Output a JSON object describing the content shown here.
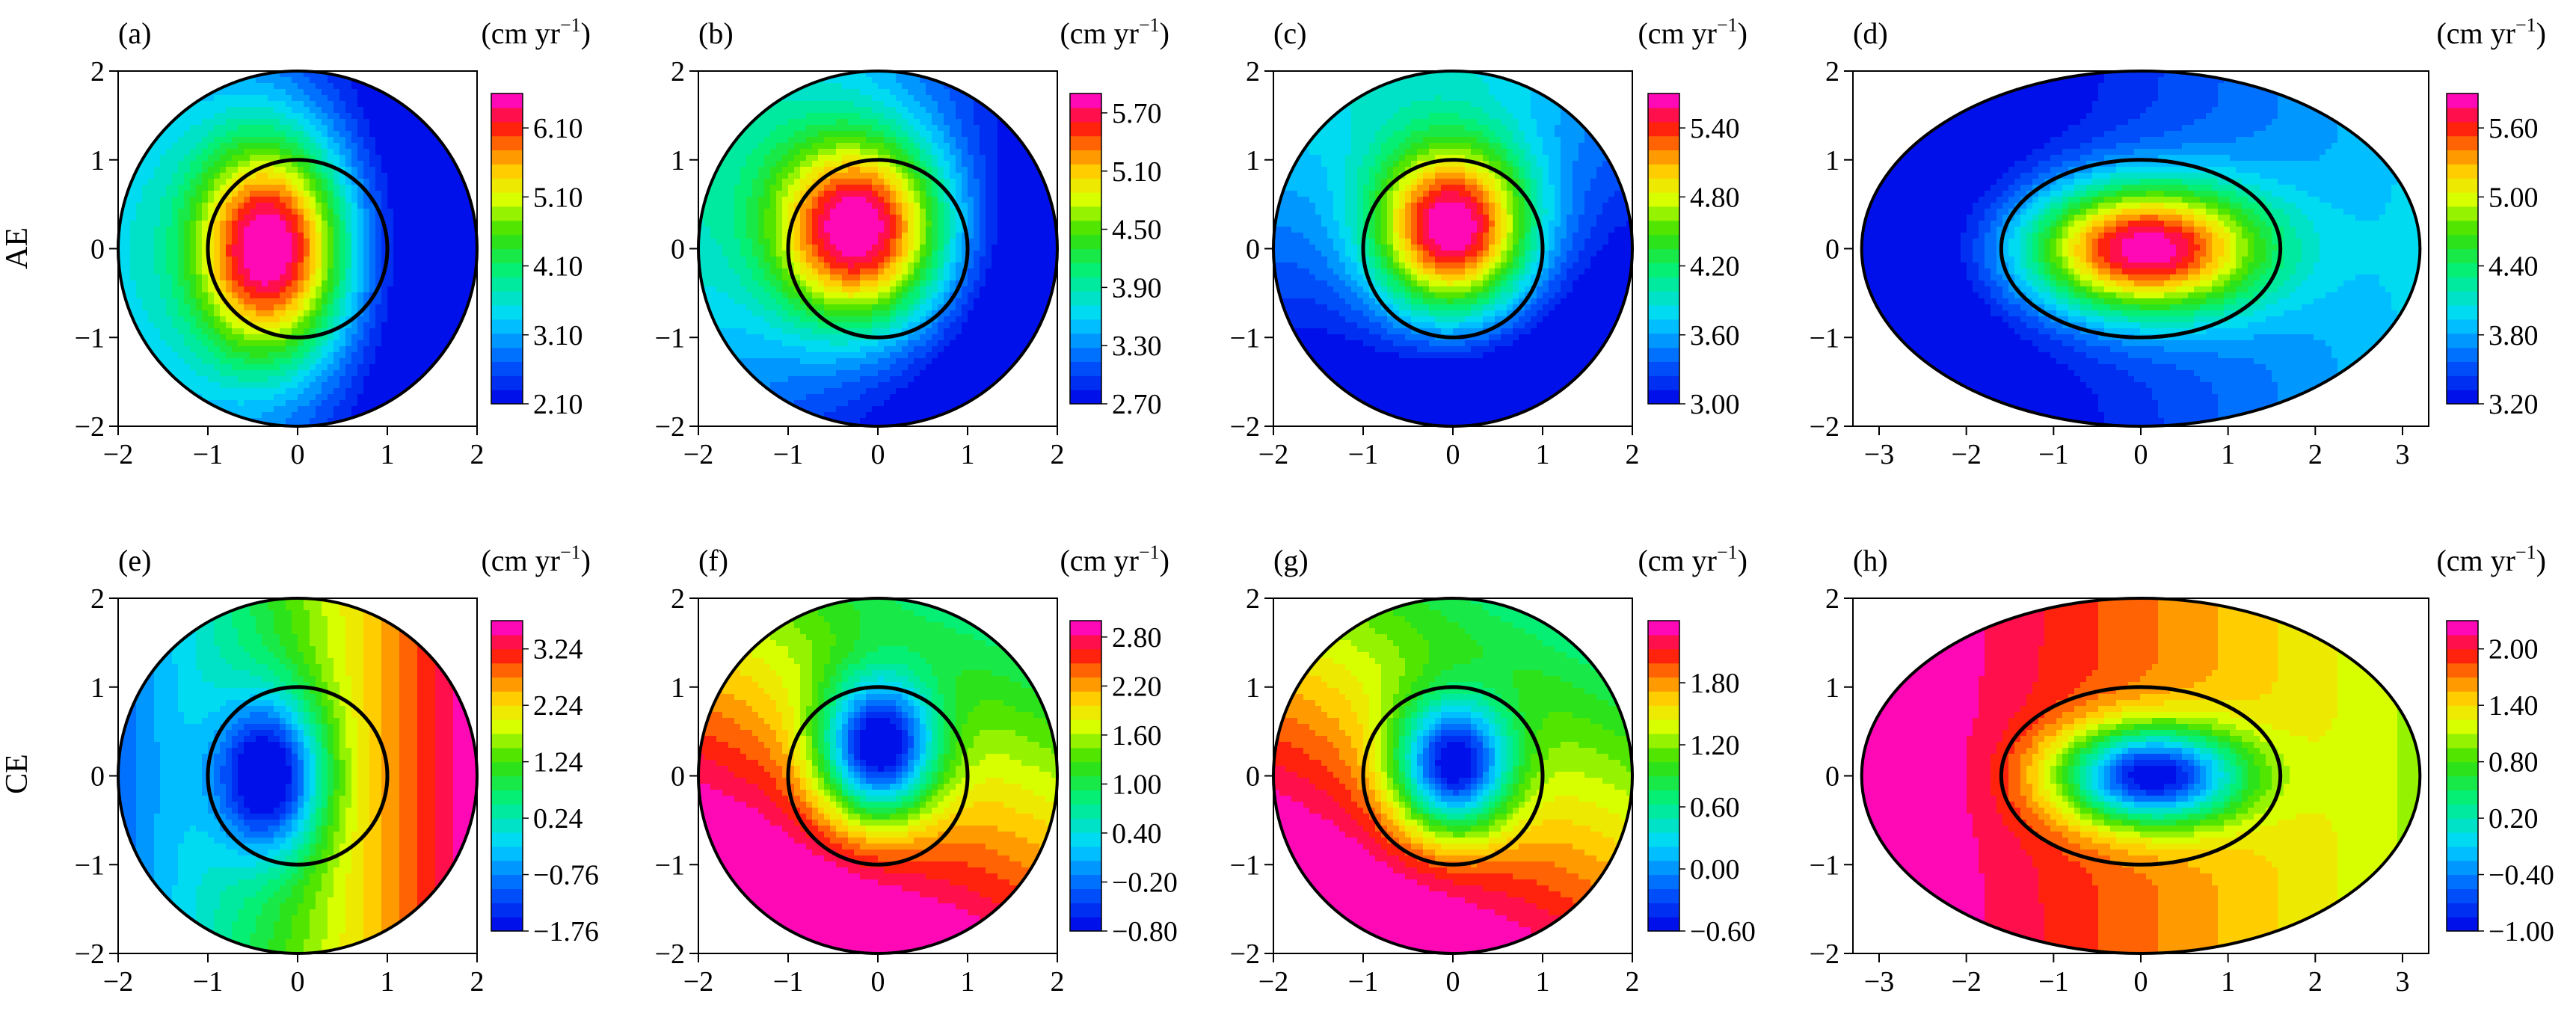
{
  "figure": {
    "row_labels": [
      "AE",
      "CE"
    ],
    "unit_label": "(cm yr",
    "unit_exp": "−1",
    "unit_close": ")"
  },
  "chart_data": [
    {
      "type": "heatmap",
      "label": "(a)",
      "ylabel": "AE",
      "domain": "circle",
      "xlim": [
        -2,
        2
      ],
      "ylim": [
        -2,
        2
      ],
      "xticks": [
        -2,
        -1,
        0,
        1,
        2
      ],
      "yticks": [
        -2,
        -1,
        0,
        1,
        2
      ],
      "inner_boundary": {
        "shape": "ellipse",
        "rx": 1,
        "ry": 1
      },
      "colorbar": {
        "min": 2.1,
        "max": 6.6,
        "ticks": [
          2.1,
          3.1,
          4.1,
          5.1,
          6.1
        ]
      },
      "field": {
        "kind": "gauss",
        "base": 2.4,
        "peak": 6.6,
        "center": [
          -0.3,
          0
        ],
        "sigma": [
          0.9,
          1.3
        ],
        "xgrad": -0.5
      }
    },
    {
      "type": "heatmap",
      "label": "(b)",
      "domain": "circle",
      "xlim": [
        -2,
        2
      ],
      "ylim": [
        -2,
        2
      ],
      "xticks": [
        -2,
        -1,
        0,
        1,
        2
      ],
      "yticks": [
        -2,
        -1,
        0,
        1,
        2
      ],
      "inner_boundary": {
        "shape": "ellipse",
        "rx": 1,
        "ry": 1
      },
      "colorbar": {
        "min": 2.7,
        "max": 5.9,
        "ticks": [
          2.7,
          3.3,
          3.9,
          4.5,
          5.1,
          5.7
        ]
      },
      "field": {
        "kind": "gauss",
        "base": 3.0,
        "peak": 5.9,
        "center": [
          -0.2,
          0.2
        ],
        "sigma": [
          1.0,
          1.1
        ],
        "xgrad": -0.35,
        "ygrad": 0.15
      }
    },
    {
      "type": "heatmap",
      "label": "(c)",
      "domain": "circle",
      "xlim": [
        -2,
        2
      ],
      "ylim": [
        -2,
        2
      ],
      "xticks": [
        -2,
        -1,
        0,
        1,
        2
      ],
      "yticks": [
        -2,
        -1,
        0,
        1,
        2
      ],
      "inner_boundary": {
        "shape": "ellipse",
        "rx": 1,
        "ry": 1
      },
      "colorbar": {
        "min": 3.0,
        "max": 5.7,
        "ticks": [
          3.0,
          3.6,
          4.2,
          4.8,
          5.4
        ]
      },
      "field": {
        "kind": "gauss",
        "base": 3.2,
        "peak": 5.7,
        "center": [
          0,
          0.2
        ],
        "sigma": [
          0.9,
          1.0
        ],
        "xgrad": -0.1,
        "ygrad": 0.3
      }
    },
    {
      "type": "heatmap",
      "label": "(d)",
      "domain": "ellipse",
      "xlim": [
        -3.3,
        3.3
      ],
      "ylim": [
        -2,
        2
      ],
      "xticks": [
        -3,
        -2,
        -1,
        0,
        1,
        2,
        3
      ],
      "yticks": [
        -2,
        -1,
        0,
        1,
        2
      ],
      "inner_boundary": {
        "shape": "ellipse",
        "rx": 1.6,
        "ry": 1
      },
      "colorbar": {
        "min": 3.2,
        "max": 5.9,
        "ticks": [
          3.2,
          3.8,
          4.4,
          5.0,
          5.6
        ]
      },
      "field": {
        "kind": "gauss",
        "base": 3.4,
        "peak": 5.9,
        "center": [
          0,
          0
        ],
        "sigma": [
          1.4,
          0.75
        ],
        "xgrad": 0.18
      }
    },
    {
      "type": "heatmap",
      "label": "(e)",
      "ylabel": "CE",
      "domain": "circle",
      "xlim": [
        -2,
        2
      ],
      "ylim": [
        -2,
        2
      ],
      "xticks": [
        -2,
        -1,
        0,
        1,
        2
      ],
      "yticks": [
        -2,
        -1,
        0,
        1,
        2
      ],
      "inner_boundary": {
        "shape": "ellipse",
        "rx": 1,
        "ry": 1
      },
      "colorbar": {
        "min": -1.76,
        "max": 3.74,
        "ticks": [
          -1.76,
          -0.76,
          0.24,
          1.24,
          2.24,
          3.24
        ]
      },
      "field": {
        "kind": "gauss",
        "base": 1.4,
        "peak": -1.76,
        "center": [
          -0.3,
          0
        ],
        "sigma": [
          0.6,
          0.9
        ],
        "xgrad": 1.2
      }
    },
    {
      "type": "heatmap",
      "label": "(f)",
      "domain": "circle",
      "xlim": [
        -2,
        2
      ],
      "ylim": [
        -2,
        2
      ],
      "xticks": [
        -2,
        -1,
        0,
        1,
        2
      ],
      "yticks": [
        -2,
        -1,
        0,
        1,
        2
      ],
      "inner_boundary": {
        "shape": "ellipse",
        "rx": 1,
        "ry": 1
      },
      "colorbar": {
        "min": -0.8,
        "max": 3.0,
        "ticks": [
          -0.8,
          -0.2,
          0.4,
          1.0,
          1.6,
          2.2,
          2.8
        ]
      },
      "field": {
        "kind": "gauss",
        "base": 2.2,
        "peak": -0.8,
        "center": [
          0,
          0.3
        ],
        "sigma": [
          0.65,
          0.8
        ],
        "xgrad": -0.3,
        "ygrad": -0.6
      }
    },
    {
      "type": "heatmap",
      "label": "(g)",
      "domain": "circle",
      "xlim": [
        -2,
        2
      ],
      "ylim": [
        -2,
        2
      ],
      "xticks": [
        -2,
        -1,
        0,
        1,
        2
      ],
      "yticks": [
        -2,
        -1,
        0,
        1,
        2
      ],
      "inner_boundary": {
        "shape": "ellipse",
        "rx": 1,
        "ry": 1
      },
      "colorbar": {
        "min": -0.6,
        "max": 2.4,
        "ticks": [
          -0.6,
          0.0,
          0.6,
          1.2,
          1.8
        ]
      },
      "field": {
        "kind": "gauss",
        "base": 1.7,
        "peak": -0.6,
        "center": [
          0,
          0.1
        ],
        "sigma": [
          0.65,
          0.75
        ],
        "xgrad": -0.25,
        "ygrad": -0.45
      }
    },
    {
      "type": "heatmap",
      "label": "(h)",
      "domain": "ellipse",
      "xlim": [
        -3.3,
        3.3
      ],
      "ylim": [
        -2,
        2
      ],
      "xticks": [
        -3,
        -2,
        -1,
        0,
        1,
        2,
        3
      ],
      "yticks": [
        -2,
        -1,
        0,
        1,
        2
      ],
      "inner_boundary": {
        "shape": "ellipse",
        "rx": 1.6,
        "ry": 1
      },
      "colorbar": {
        "min": -1.0,
        "max": 2.3,
        "ticks": [
          -1.0,
          -0.4,
          0.2,
          0.8,
          1.4,
          2.0
        ]
      },
      "field": {
        "kind": "gauss",
        "base": 1.75,
        "peak": -1.0,
        "center": [
          0.1,
          0
        ],
        "sigma": [
          1.05,
          0.55
        ],
        "xgrad": -0.22
      }
    }
  ]
}
